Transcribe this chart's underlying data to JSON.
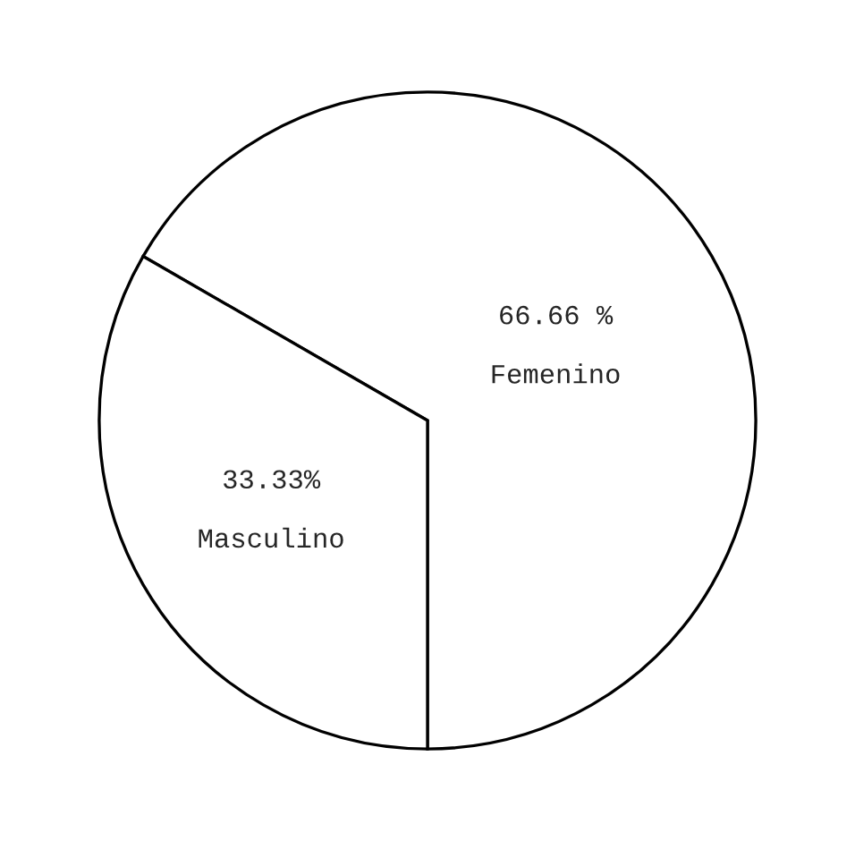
{
  "chart_data": {
    "type": "pie",
    "categories": [
      "Femenino",
      "Masculino"
    ],
    "values": [
      66.66,
      33.33
    ],
    "value_labels": [
      "66.66 %",
      "33.33%"
    ],
    "colors": [
      "#ffffff",
      "#ffffff"
    ],
    "legend": false
  }
}
